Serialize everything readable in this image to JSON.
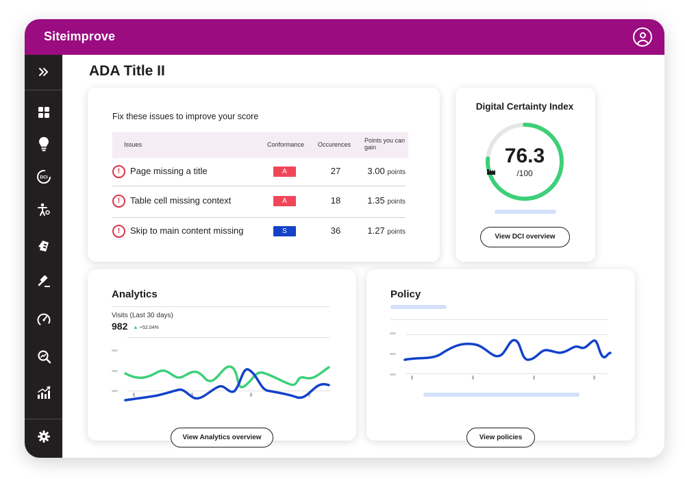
{
  "app": {
    "brand": "Siteimprove"
  },
  "sidebar": {
    "items": [
      {
        "icon": "expand-icon"
      },
      {
        "icon": "dashboard-grid-icon"
      },
      {
        "icon": "lightbulb-icon"
      },
      {
        "icon": "dci-icon",
        "text": "DCI"
      },
      {
        "icon": "accessibility-icon"
      },
      {
        "icon": "quality-assurance-icon"
      },
      {
        "icon": "policy-gavel-icon"
      },
      {
        "icon": "performance-gauge-icon"
      },
      {
        "icon": "seo-search-icon"
      },
      {
        "icon": "analytics-chart-icon"
      },
      {
        "icon": "settings-gear-icon"
      }
    ]
  },
  "page": {
    "title": "ADA Title II"
  },
  "issues": {
    "heading": "Fix these issues to improve your score",
    "columns": {
      "issues": "Issues",
      "conformance": "Conformance",
      "occurences": "Occurences",
      "points": "Points you can gain"
    },
    "rows": [
      {
        "name": "Page missing a title",
        "level": "A",
        "level_color": "#f0465a",
        "occurrences": "27",
        "points": "3.00",
        "unit": "points"
      },
      {
        "name": "Table cell missing context",
        "level": "A",
        "level_color": "#f0465a",
        "occurrences": "18",
        "points": "1.35",
        "unit": "points"
      },
      {
        "name": "Skip to main content missing",
        "level": "S",
        "level_color": "#1342c8",
        "occurrences": "36",
        "points": "1.27",
        "unit": "points"
      }
    ]
  },
  "dci": {
    "title": "Digital Certainty Index",
    "score": "76.3",
    "max": "/100",
    "score_fraction": 0.763,
    "button": "View DCI overview",
    "colors": {
      "ring": "#3ecf79",
      "track": "#e6e6e6"
    }
  },
  "analytics": {
    "title": "Analytics",
    "visits_label": "Visits (Last 30 days)",
    "visits_value": "982",
    "change": "+52.04%",
    "button": "View Analytics overview",
    "colors": {
      "green_line": "#3ecf79",
      "blue_line": "#1342c8"
    }
  },
  "policy": {
    "title": "Policy",
    "button": "View policies",
    "colors": {
      "line": "#1342c8"
    }
  }
}
